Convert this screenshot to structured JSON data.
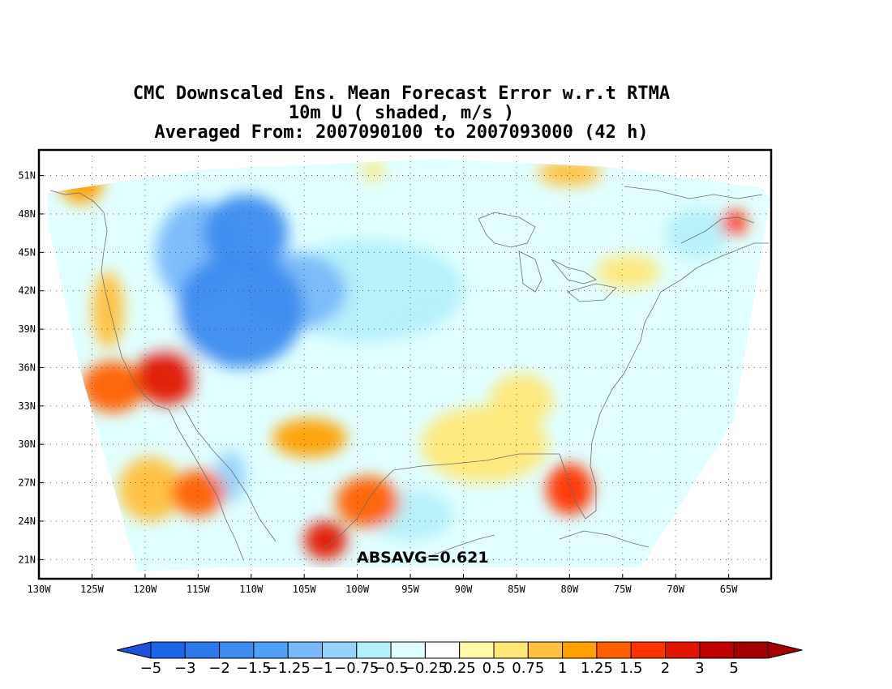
{
  "title": {
    "line1": "CMC Downscaled Ens. Mean Forecast Error w.r.t RTMA",
    "line2": "10m U ( shaded, m/s )",
    "line3": "Averaged From: 2007090100 to 2007093000 (42 h)"
  },
  "annotation": "ABSAVG=0.621",
  "map": {
    "lon_range": [
      -130,
      -61
    ],
    "lat_range": [
      19.5,
      53
    ],
    "lon_ticks": [
      "130W",
      "125W",
      "120W",
      "115W",
      "110W",
      "105W",
      "100W",
      "95W",
      "90W",
      "85W",
      "80W",
      "75W",
      "70W",
      "65W"
    ],
    "lon_values": [
      -130,
      -125,
      -120,
      -115,
      -110,
      -105,
      -100,
      -95,
      -90,
      -85,
      -80,
      -75,
      -70,
      -65
    ],
    "lat_ticks": [
      "21N",
      "24N",
      "27N",
      "30N",
      "33N",
      "36N",
      "39N",
      "42N",
      "45N",
      "48N",
      "51N"
    ],
    "lat_values": [
      21,
      24,
      27,
      30,
      33,
      36,
      39,
      42,
      45,
      48,
      51
    ],
    "grid": true
  },
  "colorbar": {
    "labels": [
      "-5",
      "-3",
      "-2",
      "-1.5",
      "-1.25",
      "-1",
      "-0.75",
      "-0.5",
      "-0.25",
      "0.25",
      "0.5",
      "0.75",
      "1",
      "1.25",
      "1.5",
      "2",
      "3",
      "5"
    ],
    "colors": [
      "#1e64e6",
      "#2d78eb",
      "#3c8cf0",
      "#50a0f5",
      "#78b9fa",
      "#96d2fa",
      "#b4f0fa",
      "#e1ffff",
      "#ffffff",
      "#fffaaa",
      "#ffe878",
      "#ffc03c",
      "#ffa000",
      "#ff6000",
      "#ff3200",
      "#e11400",
      "#c00000",
      "#a50000"
    ],
    "under_color": "#1e50dc",
    "over_color": "#a50000"
  },
  "field_blobs": [
    {
      "lon": -111,
      "lat": 40.5,
      "rx": 6,
      "ry": 4.5,
      "value": -2
    },
    {
      "lon": -110.5,
      "lat": 46.5,
      "rx": 4,
      "ry": 3,
      "value": -2
    },
    {
      "lon": -115,
      "lat": 45,
      "rx": 4,
      "ry": 4,
      "value": -1.25
    },
    {
      "lon": -106,
      "lat": 42,
      "rx": 5,
      "ry": 3,
      "value": -1.25
    },
    {
      "lon": -99,
      "lat": 42,
      "rx": 9,
      "ry": 4,
      "value": -0.75
    },
    {
      "lon": -92,
      "lat": 38,
      "rx": 6,
      "ry": 3,
      "value": -0.5
    },
    {
      "lon": -116,
      "lat": 38,
      "rx": 3,
      "ry": 3,
      "value": -0.5
    },
    {
      "lon": -118,
      "lat": 35.3,
      "rx": 2.8,
      "ry": 2.2,
      "value": 2
    },
    {
      "lon": -123,
      "lat": 34.5,
      "rx": 3,
      "ry": 2,
      "value": 1.25
    },
    {
      "lon": -123.5,
      "lat": 40.5,
      "rx": 1.5,
      "ry": 3,
      "value": 0.75
    },
    {
      "lon": -126,
      "lat": 50.3,
      "rx": 2,
      "ry": 1.5,
      "value": 1
    },
    {
      "lon": -115,
      "lat": 26.2,
      "rx": 2.5,
      "ry": 1.8,
      "value": 1.25
    },
    {
      "lon": -119.5,
      "lat": 26.5,
      "rx": 3,
      "ry": 2.5,
      "value": 0.75
    },
    {
      "lon": -103,
      "lat": 22.5,
      "rx": 2,
      "ry": 1.5,
      "value": 2
    },
    {
      "lon": -99,
      "lat": 25.5,
      "rx": 3,
      "ry": 2,
      "value": 1.25
    },
    {
      "lon": -104.5,
      "lat": 30.5,
      "rx": 3.5,
      "ry": 1.5,
      "value": 1
    },
    {
      "lon": -88,
      "lat": 30,
      "rx": 6,
      "ry": 3,
      "value": 0.5
    },
    {
      "lon": -84.5,
      "lat": 33.5,
      "rx": 3,
      "ry": 2,
      "value": 0.5
    },
    {
      "lon": -80,
      "lat": 26.5,
      "rx": 2.2,
      "ry": 2,
      "value": 1.5
    },
    {
      "lon": -112,
      "lat": 27.5,
      "rx": 1.5,
      "ry": 2,
      "value": -1
    },
    {
      "lon": -95,
      "lat": 24.5,
      "rx": 4,
      "ry": 2,
      "value": -0.75
    },
    {
      "lon": -71,
      "lat": 27,
      "rx": 3,
      "ry": 3,
      "value": -0.5
    },
    {
      "lon": -73,
      "lat": 39,
      "rx": 3,
      "ry": 2,
      "value": -0.5
    },
    {
      "lon": -68,
      "lat": 46.5,
      "rx": 3,
      "ry": 2,
      "value": -0.75
    },
    {
      "lon": -64.5,
      "lat": 47.3,
      "rx": 1.2,
      "ry": 1,
      "value": 1.5
    },
    {
      "lon": -80,
      "lat": 51.2,
      "rx": 3,
      "ry": 1,
      "value": 0.75
    },
    {
      "lon": -74.5,
      "lat": 43.5,
      "rx": 3,
      "ry": 1.3,
      "value": 0.5
    },
    {
      "lon": -79,
      "lat": 37,
      "rx": 3,
      "ry": 3,
      "value": -0.5
    },
    {
      "lon": -98.5,
      "lat": 51.4,
      "rx": 1,
      "ry": 0.8,
      "value": 0.5
    }
  ]
}
